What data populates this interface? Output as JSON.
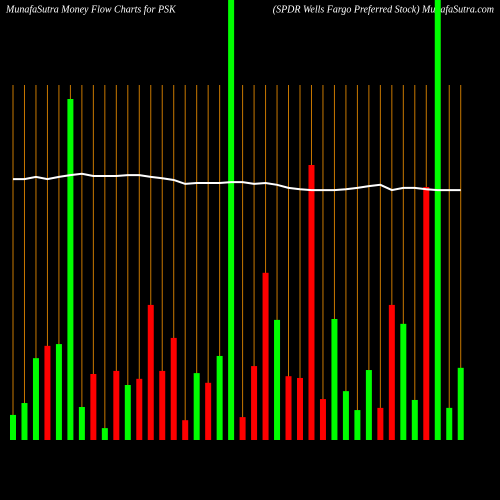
{
  "chart_data": {
    "type": "bar",
    "title": "MunafaSutra  Money Flow  Charts for PSK",
    "subtitle": "(SPDR Wells Fargo  Preferred Stock) MunafaSutra.com",
    "ylim": [
      0,
      100
    ],
    "values": [
      5.7,
      8.4,
      18.6,
      21.4,
      21.8,
      77.5,
      7.5,
      15,
      2.7,
      15.7,
      12.5,
      13.9,
      30.7,
      15.7,
      23.2,
      4.5,
      15.2,
      13,
      19.1,
      100,
      5.2,
      16.8,
      38,
      27.3,
      14.5,
      14.1,
      62.5,
      9.3,
      27.5,
      11.1,
      6.8,
      15.9,
      7.3,
      30.7,
      26.4,
      9.1,
      57.5,
      100,
      7.3,
      16.4
    ],
    "colors": [
      "#00ff00",
      "#00ff00",
      "#00ff00",
      "#ff0000",
      "#00ff00",
      "#00ff00",
      "#00ff00",
      "#ff0000",
      "#00ff00",
      "#ff0000",
      "#00ff00",
      "#ff0000",
      "#ff0000",
      "#ff0000",
      "#ff0000",
      "#ff0000",
      "#00ff00",
      "#ff0000",
      "#00ff00",
      "#00ff00",
      "#ff0000",
      "#ff0000",
      "#ff0000",
      "#00ff00",
      "#ff0000",
      "#ff0000",
      "#ff0000",
      "#ff0000",
      "#00ff00",
      "#00ff00",
      "#00ff00",
      "#00ff00",
      "#ff0000",
      "#ff0000",
      "#00ff00",
      "#00ff00",
      "#ff0000",
      "#00ff00",
      "#00ff00",
      "#00ff00"
    ],
    "line": {
      "color": "#ffffff",
      "values": [
        59.3,
        59.3,
        59.8,
        59.3,
        59.8,
        60.2,
        60.5,
        60,
        60,
        60,
        60.2,
        60.2,
        59.8,
        59.5,
        59.1,
        58.2,
        58.4,
        58.4,
        58.4,
        58.6,
        58.6,
        58.2,
        58.4,
        58,
        57.3,
        57,
        56.8,
        56.8,
        56.8,
        57,
        57.3,
        57.7,
        58,
        56.8,
        57.3,
        57.3,
        57,
        56.8,
        56.8,
        56.8
      ]
    },
    "separator_color": "#c87800"
  }
}
